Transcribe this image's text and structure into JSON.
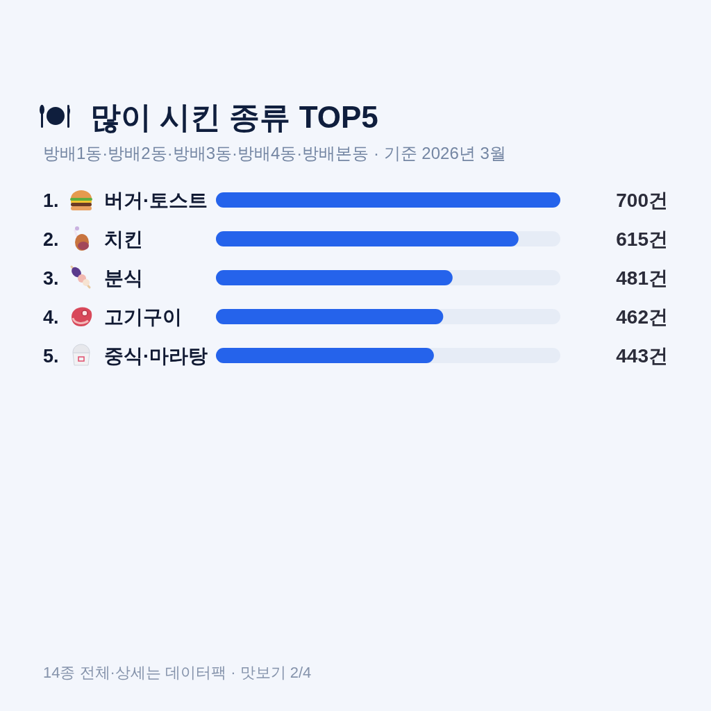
{
  "chart_data": {
    "type": "bar",
    "orientation": "horizontal",
    "title": "많이 시킨 종류 TOP5",
    "subtitle": "방배1동·방배2동·방배3동·방배4동·방배본동 · 기준 2026년 3월",
    "categories": [
      "1. 버거·토스트",
      "2. 치킨",
      "3. 분식",
      "4. 고기구이",
      "5. 중식·마라탕"
    ],
    "values": [
      700,
      615,
      481,
      462,
      443
    ],
    "color": "#2563eb",
    "value_labels": [
      "700건",
      "615건",
      "481건",
      "462건",
      "443건"
    ],
    "annotations": [
      "14종 전체·상세는 데이터팩 · 맛보기 2/4"
    ]
  }
}
